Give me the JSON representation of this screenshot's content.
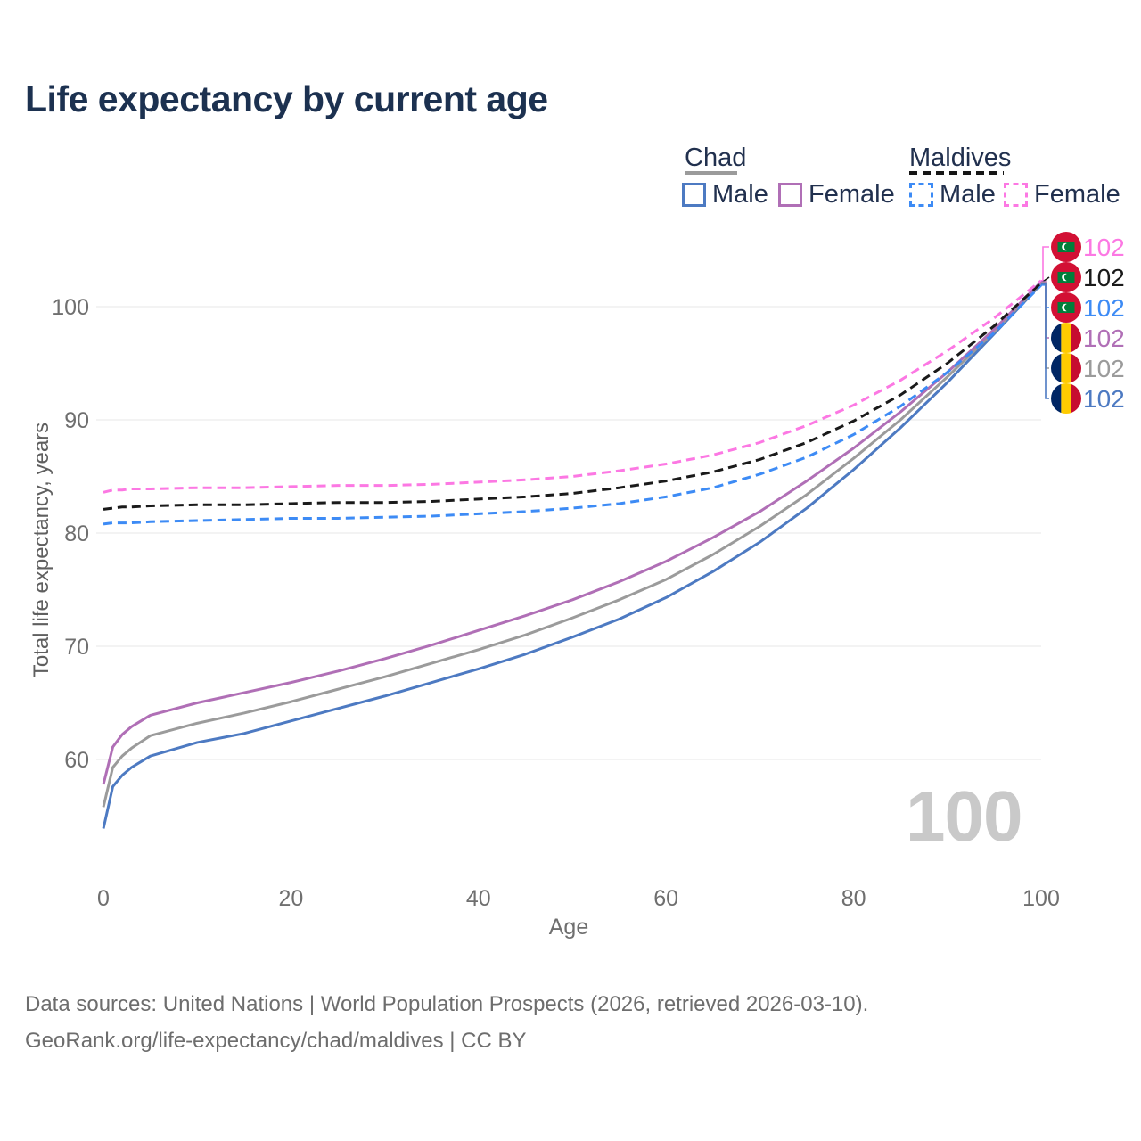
{
  "title": "Life expectancy by current age",
  "watermark": "100",
  "legend": {
    "groups": [
      {
        "title": "Chad",
        "items": [
          "Male",
          "Female"
        ]
      },
      {
        "title": "Maldives",
        "items": [
          "Male",
          "Female"
        ]
      }
    ]
  },
  "footer": {
    "line1": "Data sources: United Nations | World Population Prospects (2026, retrieved 2026-03-10).",
    "line2": "GeoRank.org/life-expectancy/chad/maldives | CC BY"
  },
  "chart_data": {
    "type": "line",
    "title": "Life expectancy by current age",
    "xlabel": "Age",
    "ylabel": "Total life expectancy, years",
    "x_ticks": [
      0,
      20,
      40,
      60,
      80,
      100
    ],
    "y_ticks": [
      60,
      70,
      80,
      90,
      100
    ],
    "xlim": [
      0,
      100
    ],
    "ylim": [
      55,
      105
    ],
    "grid": "horizontal",
    "legend_position": "top-right",
    "ages": [
      0,
      1,
      2,
      3,
      5,
      10,
      15,
      20,
      25,
      30,
      35,
      40,
      45,
      50,
      55,
      60,
      65,
      70,
      75,
      80,
      85,
      90,
      95,
      100
    ],
    "series": [
      {
        "id": "chad-male",
        "name": "Chad Male",
        "country": "chad",
        "sex": "male",
        "color": "#4d7ac2",
        "dashed": false,
        "slot": 5,
        "end_label": "102",
        "values": [
          53.9,
          57.6,
          58.6,
          59.3,
          60.3,
          61.5,
          62.3,
          63.4,
          64.5,
          65.6,
          66.8,
          68.0,
          69.3,
          70.8,
          72.4,
          74.3,
          76.6,
          79.2,
          82.2,
          85.6,
          89.3,
          93.3,
          97.6,
          102.0
        ]
      },
      {
        "id": "chad-all",
        "name": "Chad",
        "country": "chad",
        "sex": "all",
        "color": "#9b9b9b",
        "dashed": false,
        "slot": 4,
        "end_label": "102",
        "values": [
          55.8,
          59.3,
          60.3,
          61.0,
          62.1,
          63.2,
          64.1,
          65.1,
          66.2,
          67.3,
          68.5,
          69.7,
          71.0,
          72.5,
          74.1,
          75.9,
          78.1,
          80.6,
          83.4,
          86.6,
          90.0,
          93.8,
          97.8,
          102.1
        ]
      },
      {
        "id": "chad-female",
        "name": "Chad Female",
        "country": "chad",
        "sex": "female",
        "color": "#b06fb6",
        "dashed": false,
        "slot": 3,
        "end_label": "102",
        "values": [
          57.8,
          61.1,
          62.2,
          62.9,
          63.9,
          65.0,
          65.9,
          66.8,
          67.8,
          68.9,
          70.1,
          71.4,
          72.7,
          74.1,
          75.7,
          77.5,
          79.6,
          81.9,
          84.6,
          87.5,
          90.7,
          94.2,
          98.0,
          102.2
        ]
      },
      {
        "id": "maldives-male",
        "name": "Maldives Male",
        "country": "maldives",
        "sex": "male",
        "color": "#3d8bf5",
        "dashed": true,
        "slot": 2,
        "end_label": "102",
        "values": [
          80.8,
          80.9,
          80.9,
          80.9,
          81.0,
          81.1,
          81.2,
          81.3,
          81.3,
          81.4,
          81.5,
          81.7,
          81.9,
          82.2,
          82.6,
          83.2,
          84.0,
          85.2,
          86.7,
          88.7,
          91.2,
          94.2,
          97.7,
          101.9
        ]
      },
      {
        "id": "maldives-all",
        "name": "Maldives",
        "country": "maldives",
        "sex": "all",
        "color": "#1a1a1a",
        "dashed": true,
        "slot": 1,
        "end_label": "102",
        "values": [
          82.1,
          82.2,
          82.3,
          82.3,
          82.4,
          82.5,
          82.5,
          82.6,
          82.7,
          82.7,
          82.8,
          83.0,
          83.2,
          83.5,
          84.0,
          84.6,
          85.4,
          86.5,
          88.0,
          89.9,
          92.2,
          95.0,
          98.3,
          102.1
        ]
      },
      {
        "id": "maldives-female",
        "name": "Maldives Female",
        "country": "maldives",
        "sex": "female",
        "color": "#fc78e3",
        "dashed": true,
        "slot": 0,
        "end_label": "102",
        "values": [
          83.6,
          83.8,
          83.8,
          83.9,
          83.9,
          84.0,
          84.0,
          84.1,
          84.2,
          84.2,
          84.3,
          84.5,
          84.7,
          85.0,
          85.5,
          86.1,
          86.9,
          88.0,
          89.5,
          91.3,
          93.5,
          96.1,
          99.0,
          102.3
        ]
      }
    ]
  }
}
